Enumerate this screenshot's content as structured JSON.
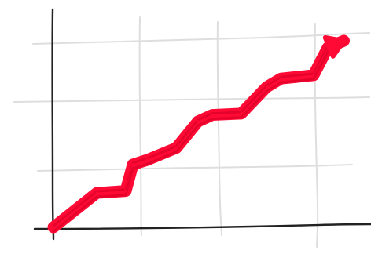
{
  "chart_data": {
    "type": "line",
    "x": [
      0,
      0.6,
      1.0,
      1.1,
      1.3,
      1.7,
      2.0,
      2.2,
      2.6,
      2.95,
      3.15,
      3.6,
      3.8,
      4.02
    ],
    "series": [
      {
        "values": [
          0,
          0.52,
          0.55,
          0.95,
          1.02,
          1.2,
          1.6,
          1.7,
          1.72,
          2.12,
          2.25,
          2.3,
          2.72,
          2.82
        ]
      }
    ],
    "xlim": [
      0,
      4.2
    ],
    "ylim": [
      0,
      3.2
    ],
    "grid": true,
    "sketch_style": true,
    "arrow_end": true,
    "colors": {
      "line": "#ff0a35",
      "line_dark": "#d80026",
      "axis": "#222222",
      "grid": "#dedede"
    }
  }
}
